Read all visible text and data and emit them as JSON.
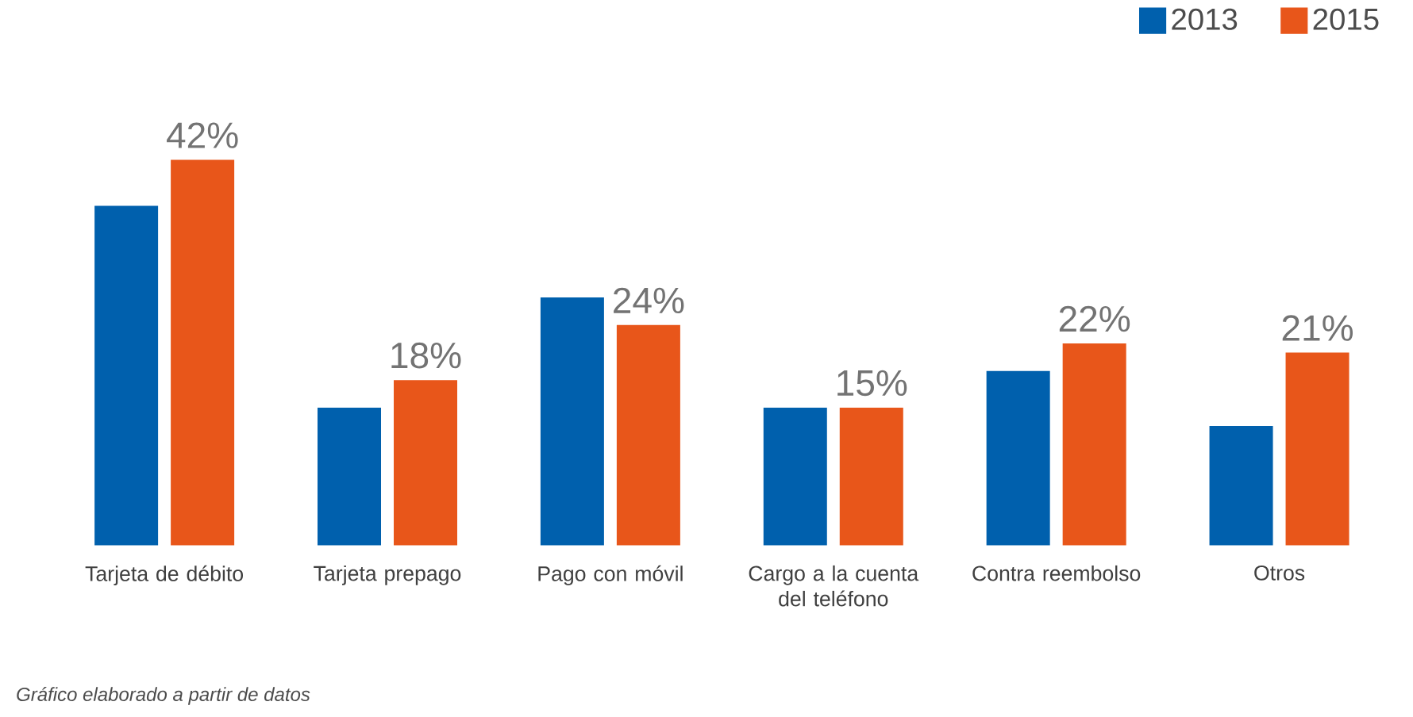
{
  "chart_data": {
    "type": "bar",
    "categories": [
      "Tarjeta de débito",
      "Tarjeta prepago",
      "Pago con móvil",
      "Cargo a la cuenta del teléfono",
      "Contra reembolso",
      "Otros"
    ],
    "series": [
      {
        "name": "2013",
        "color": "#0060ad",
        "values": [
          37,
          15,
          27,
          15,
          19,
          13
        ]
      },
      {
        "name": "2015",
        "color": "#e8561a",
        "values": [
          42,
          18,
          24,
          15,
          22,
          21
        ],
        "value_labels": [
          "42%",
          "18%",
          "24%",
          "15%",
          "22%",
          "21%"
        ]
      }
    ],
    "legend": "top right",
    "annotations": [
      "Gráfico elaborado a partir de datos"
    ]
  }
}
